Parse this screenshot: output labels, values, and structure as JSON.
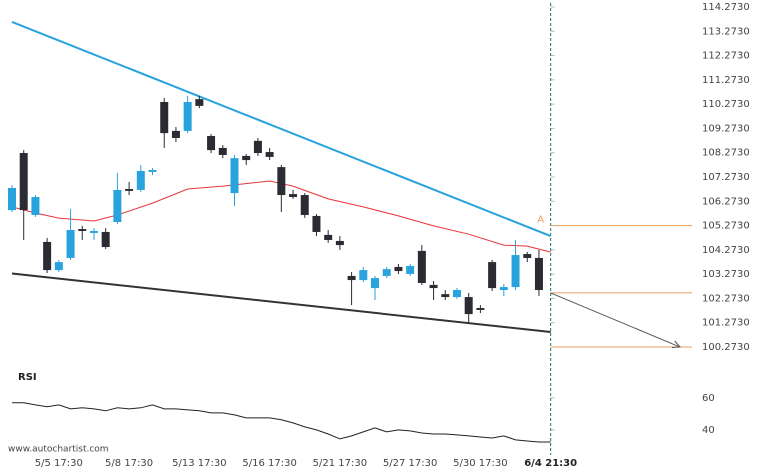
{
  "chart_data": {
    "type": "candlestick",
    "categories": [
      null,
      null,
      null,
      null,
      "5/5 17:30",
      null,
      null,
      null,
      null,
      null,
      "5/8 17:30",
      null,
      null,
      null,
      null,
      null,
      "5/13 17:30",
      null,
      null,
      null,
      null,
      null,
      "5/16 17:30",
      null,
      null,
      null,
      null,
      null,
      "5/21 17:30",
      null,
      null,
      null,
      null,
      null,
      "5/27 17:30",
      null,
      null,
      null,
      null,
      null,
      "5/30 17:30",
      null,
      null,
      null,
      null,
      null,
      "6/4 21:30"
    ],
    "open": [
      105.91,
      108.26,
      105.71,
      104.6,
      103.44,
      103.94,
      105.13,
      104.97,
      105.01,
      105.42,
      106.78,
      106.74,
      107.48,
      110.36,
      109.17,
      109.17,
      110.48,
      108.96,
      108.47,
      106.61,
      108.14,
      108.76,
      108.3,
      107.68,
      106.57,
      106.53,
      105.67,
      104.89,
      104.64,
      103.2,
      103.03,
      102.7,
      103.2,
      103.57,
      103.28,
      104.23,
      102.83,
      102.45,
      102.33,
      102.33,
      101.88,
      103.77,
      102.62,
      102.74,
      104.1,
      103.94,
      null
    ],
    "high": [
      106.94,
      108.38,
      106.53,
      104.76,
      103.86,
      105.96,
      105.26,
      105.17,
      105.17,
      107.44,
      107.07,
      107.77,
      107.64,
      110.53,
      109.33,
      110.61,
      110.61,
      109.04,
      108.59,
      108.18,
      108.22,
      108.88,
      108.47,
      107.77,
      106.74,
      106.61,
      105.75,
      105.09,
      104.84,
      103.36,
      103.57,
      103.2,
      103.57,
      103.69,
      103.69,
      104.47,
      102.99,
      102.62,
      102.7,
      102.5,
      102.0,
      103.86,
      102.87,
      104.68,
      104.19,
      104.27,
      null
    ],
    "low": [
      105.83,
      104.68,
      105.63,
      103.32,
      103.36,
      103.86,
      104.68,
      104.68,
      104.31,
      105.34,
      106.53,
      106.66,
      107.35,
      108.47,
      108.71,
      109.08,
      110.11,
      108.26,
      108.05,
      106.08,
      107.77,
      108.14,
      107.97,
      105.83,
      106.37,
      105.59,
      104.84,
      104.56,
      104.27,
      102.0,
      102.95,
      102.21,
      103.11,
      103.28,
      103.2,
      102.83,
      102.21,
      102.21,
      102.25,
      101.26,
      101.67,
      102.58,
      102.37,
      102.62,
      103.77,
      102.37,
      null
    ],
    "close": [
      106.82,
      105.91,
      106.45,
      103.44,
      103.77,
      105.09,
      105.05,
      105.05,
      104.39,
      106.74,
      106.7,
      107.52,
      107.56,
      109.08,
      108.88,
      110.36,
      110.2,
      108.38,
      108.18,
      108.05,
      107.97,
      108.26,
      108.1,
      106.53,
      106.45,
      105.71,
      105.01,
      104.68,
      104.47,
      103.03,
      103.44,
      103.11,
      103.48,
      103.4,
      103.61,
      102.91,
      102.7,
      102.33,
      102.62,
      101.63,
      101.8,
      102.7,
      102.74,
      104.06,
      103.94,
      102.62,
      null
    ],
    "up_color": "#29a3dd",
    "down_color": "#2b2b33",
    "ma": {
      "color": "#e8343a",
      "x": [
        0,
        2,
        4,
        7,
        9,
        12,
        15,
        18,
        22,
        24,
        27,
        30,
        33,
        36,
        39,
        42,
        44,
        46
      ],
      "values": [
        106.04,
        105.79,
        105.58,
        105.46,
        105.71,
        106.2,
        106.78,
        106.9,
        107.11,
        106.9,
        106.37,
        106.04,
        105.67,
        105.26,
        104.92,
        104.47,
        104.43,
        104.18
      ]
    },
    "resistance": {
      "color": "#29a3dd",
      "x": [
        0,
        46
      ],
      "values": [
        113.66,
        104.84
      ]
    },
    "support": {
      "color": "#333333",
      "x": [
        0,
        46
      ],
      "values": [
        103.3,
        100.89
      ]
    },
    "levels": {
      "color": "#e8a060",
      "values": [
        105.273,
        102.5,
        100.273
      ]
    },
    "level_label": "A",
    "forecast": {
      "from": 102.5,
      "to": 100.273
    },
    "ylim": [
      99.78,
      114.56
    ],
    "yticks": [
      {
        "value": 114.273,
        "label": "114.2730"
      },
      {
        "value": 113.273,
        "label": "113.2730"
      },
      {
        "value": 112.273,
        "label": "112.2730"
      },
      {
        "value": 111.273,
        "label": "111.2730"
      },
      {
        "value": 110.273,
        "label": "110.2730"
      },
      {
        "value": 109.273,
        "label": "109.2730"
      },
      {
        "value": 108.273,
        "label": "108.2730"
      },
      {
        "value": 107.273,
        "label": "107.2730"
      },
      {
        "value": 106.273,
        "label": "106.2730"
      },
      {
        "value": 105.273,
        "label": "105.2730"
      },
      {
        "value": 104.273,
        "label": "104.2730"
      },
      {
        "value": 103.273,
        "label": "103.2730"
      },
      {
        "value": 102.273,
        "label": "102.2730"
      },
      {
        "value": 101.273,
        "label": "101.2730"
      },
      {
        "value": 100.273,
        "label": "100.2730"
      }
    ],
    "rsi": {
      "title": "RSI",
      "color": "#222222",
      "values": [
        56.9,
        56.9,
        55.6,
        54.4,
        55.6,
        53.1,
        53.8,
        53.1,
        51.9,
        53.8,
        53.1,
        53.8,
        55.6,
        53.1,
        53.1,
        52.5,
        51.9,
        50.6,
        50.6,
        49.4,
        47.5,
        47.5,
        47.5,
        46.3,
        44.4,
        41.9,
        40.0,
        37.5,
        34.4,
        36.3,
        38.8,
        41.3,
        38.8,
        40.0,
        39.4,
        38.1,
        37.5,
        37.5,
        36.9,
        36.3,
        35.6,
        35.0,
        36.3,
        33.8,
        33.1,
        32.5,
        32.5
      ],
      "ylim": [
        30,
        68
      ],
      "yticks": [
        60,
        40
      ]
    },
    "source": "www.autochartist.com"
  }
}
